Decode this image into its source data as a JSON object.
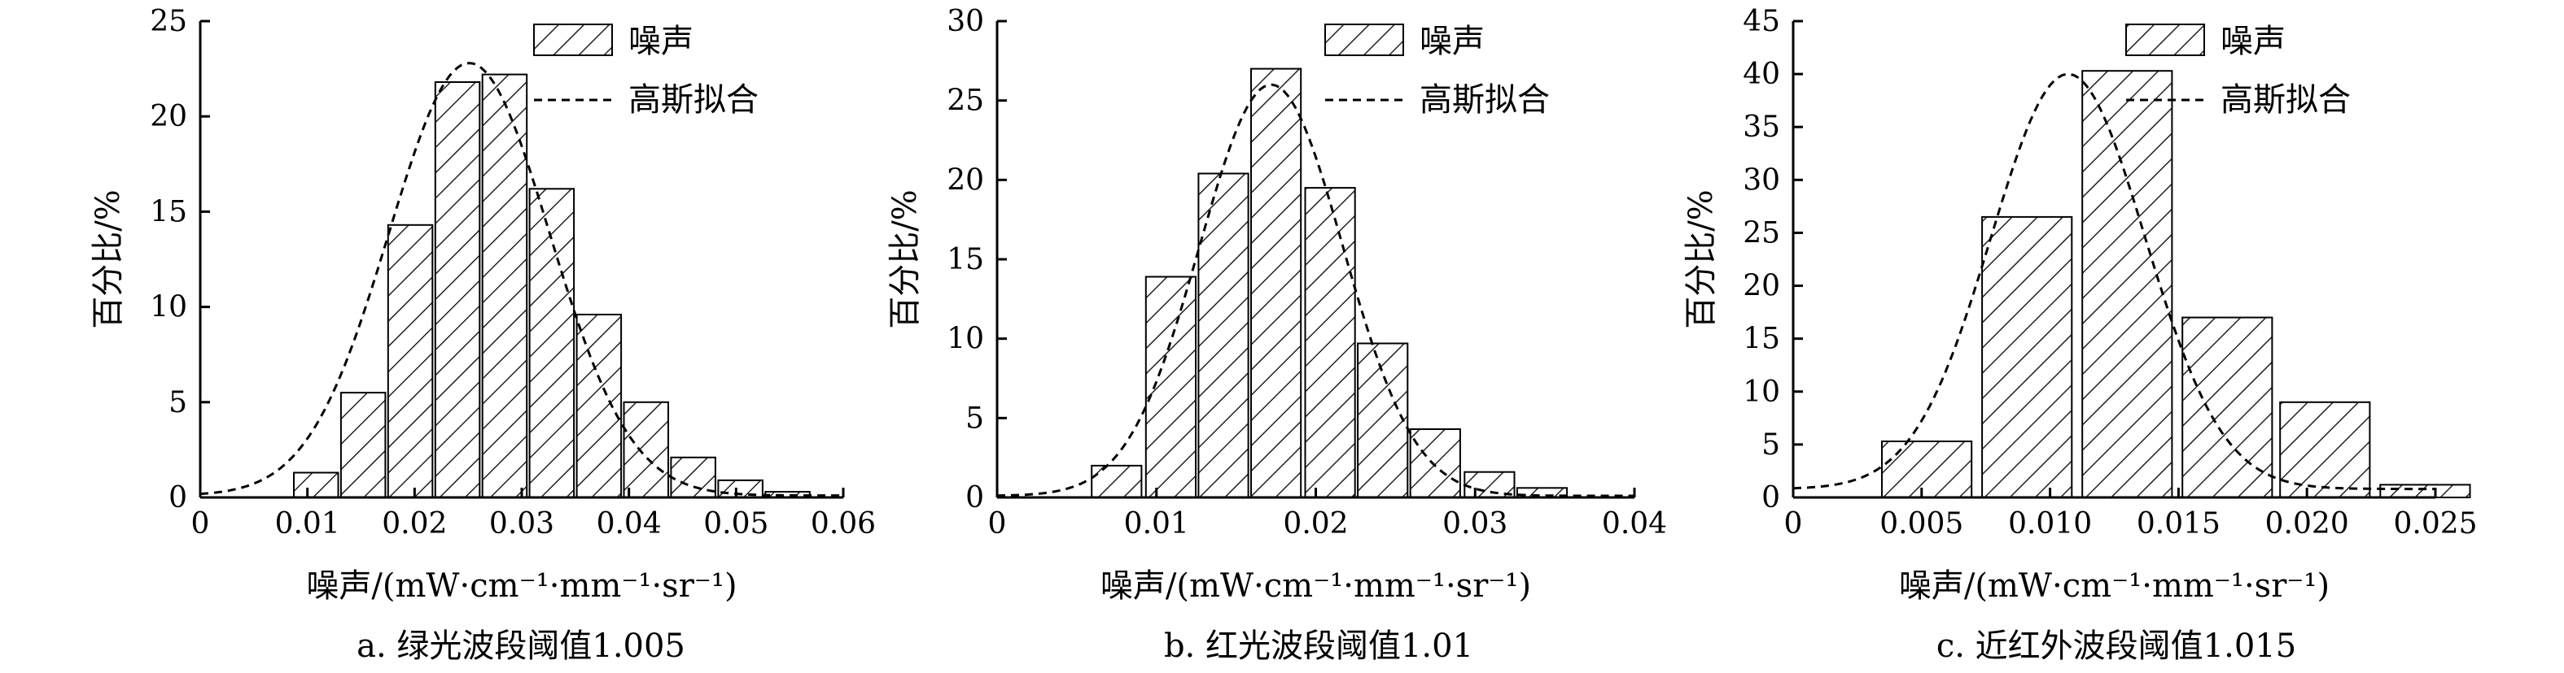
{
  "legend": {
    "noise_label": "噪声",
    "fit_label": "高斯拟合"
  },
  "chart_data": [
    {
      "type": "bar",
      "caption": "a. 绿光波段阈值1.005",
      "xlabel": "噪声/(mW·cm⁻¹·mm⁻¹·sr⁻¹)",
      "ylabel": "百分比/%",
      "xlim": [
        0,
        0.06
      ],
      "ylim": [
        0,
        25
      ],
      "xticks": [
        0,
        0.01,
        0.02,
        0.03,
        0.04,
        0.05,
        0.06
      ],
      "xtick_labels": [
        "0",
        "0.01",
        "0.02",
        "0.03",
        "0.04",
        "0.05",
        "0.06"
      ],
      "yticks": [
        0,
        5,
        10,
        15,
        20,
        25
      ],
      "ytick_labels": [
        "0",
        "5",
        "10",
        "15",
        "20",
        "25"
      ],
      "bin_width": 0.00444,
      "bin_centers": [
        0.0108,
        0.0152,
        0.0196,
        0.024,
        0.0284,
        0.0328,
        0.0372,
        0.0416,
        0.046,
        0.0504,
        0.0548
      ],
      "values": [
        1.3,
        5.5,
        14.3,
        21.8,
        22.2,
        16.2,
        9.6,
        5.0,
        2.1,
        0.9,
        0.3
      ],
      "fit": {
        "mean": 0.0251,
        "sigma": 0.0075,
        "peak": 22.8,
        "baseline": 0.1
      },
      "legend": "top-right"
    },
    {
      "type": "bar",
      "caption": "b. 红光波段阈值1.01",
      "xlabel": "噪声/(mW·cm⁻¹·mm⁻¹·sr⁻¹)",
      "ylabel": "百分比/%",
      "xlim": [
        0,
        0.04
      ],
      "ylim": [
        0,
        30
      ],
      "xticks": [
        0,
        0.01,
        0.02,
        0.03,
        0.04
      ],
      "xtick_labels": [
        "0",
        "0.01",
        "0.02",
        "0.03",
        "0.04"
      ],
      "yticks": [
        0,
        5,
        10,
        15,
        20,
        25,
        30
      ],
      "ytick_labels": [
        "0",
        "5",
        "10",
        "15",
        "20",
        "25",
        "30"
      ],
      "bin_width": 0.00333,
      "bin_centers": [
        0.0075,
        0.0109,
        0.0142,
        0.0175,
        0.0209,
        0.0242,
        0.0275,
        0.0309,
        0.0342
      ],
      "values": [
        2.0,
        13.9,
        20.4,
        27.0,
        19.5,
        9.7,
        4.3,
        1.6,
        0.6
      ],
      "fit": {
        "mean": 0.0172,
        "sigma": 0.0045,
        "peak": 26.0,
        "baseline": 0.1
      },
      "legend": "top-right"
    },
    {
      "type": "bar",
      "caption": "c. 近红外波段阈值1.015",
      "xlabel": "噪声/(mW·cm⁻¹·mm⁻¹·sr⁻¹)",
      "ylabel": "百分比/%",
      "xlim": [
        0,
        0.025
      ],
      "ylim": [
        0,
        45
      ],
      "xticks": [
        0,
        0.005,
        0.01,
        0.015,
        0.02,
        0.025
      ],
      "xtick_labels": [
        "0",
        "0.005",
        "0.010",
        "0.015",
        "0.020",
        "0.025"
      ],
      "yticks": [
        0,
        5,
        10,
        15,
        20,
        25,
        30,
        35,
        40,
        45
      ],
      "ytick_labels": [
        "0",
        "5",
        "10",
        "15",
        "20",
        "25",
        "30",
        "35",
        "40",
        "45"
      ],
      "bin_width": 0.00362,
      "bin_centers": [
        0.0052,
        0.0091,
        0.013,
        0.0169,
        0.0207,
        0.0246
      ],
      "values": [
        5.3,
        26.5,
        40.3,
        17.0,
        9.0,
        1.2
      ],
      "fit": {
        "mean": 0.0107,
        "sigma": 0.003,
        "peak": 40.0,
        "baseline": 0.8
      },
      "legend": "top-right"
    }
  ]
}
